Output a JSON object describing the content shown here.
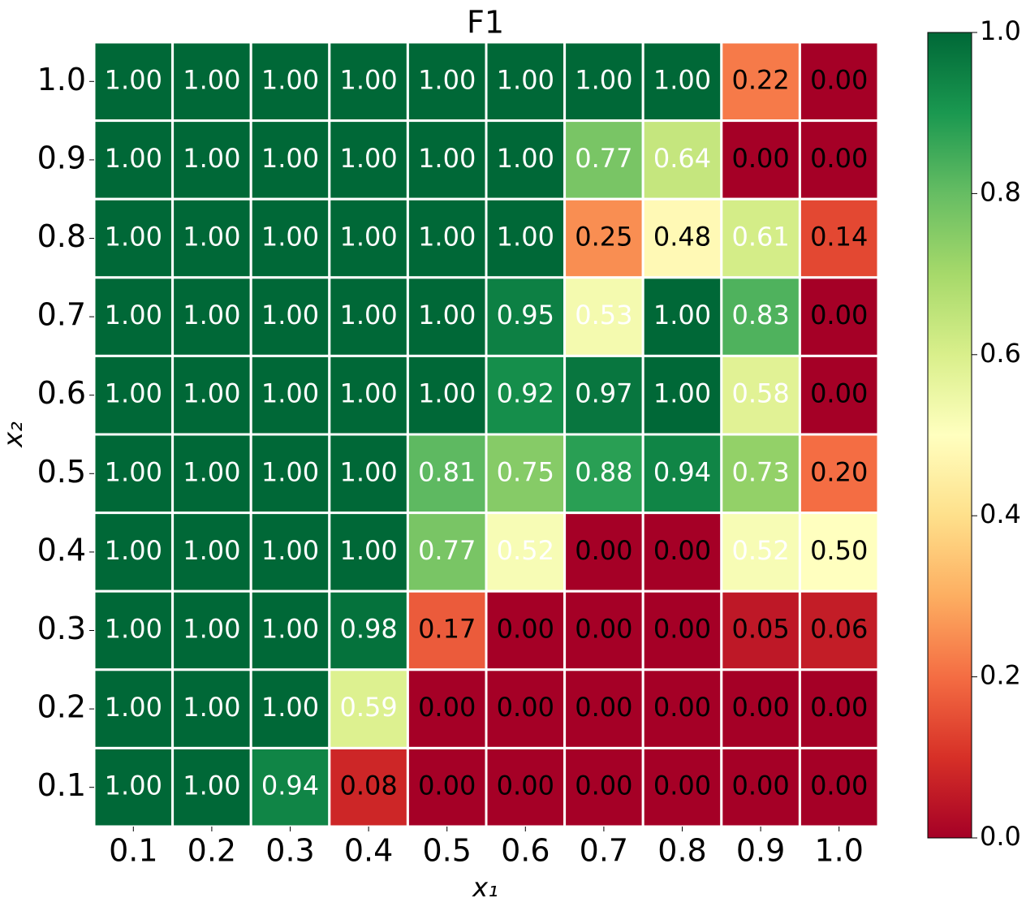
{
  "chart_data": {
    "type": "heatmap",
    "title": "F1",
    "xlabel": "x₁",
    "ylabel": "x₂",
    "x_categories": [
      "0.1",
      "0.2",
      "0.3",
      "0.4",
      "0.5",
      "0.6",
      "0.7",
      "0.8",
      "0.9",
      "1.0"
    ],
    "y_categories": [
      "1.0",
      "0.9",
      "0.8",
      "0.7",
      "0.6",
      "0.5",
      "0.4",
      "0.3",
      "0.2",
      "0.1"
    ],
    "values": [
      [
        1,
        1,
        1,
        1,
        1,
        1,
        1,
        1,
        0.22,
        0
      ],
      [
        1,
        1,
        1,
        1,
        1,
        1,
        0.77,
        0.64,
        0,
        0
      ],
      [
        1,
        1,
        1,
        1,
        1,
        1,
        0.25,
        0.48,
        0.61,
        0.14
      ],
      [
        1,
        1,
        1,
        1,
        1,
        0.95,
        0.53,
        1,
        0.83,
        0
      ],
      [
        1,
        1,
        1,
        1,
        1,
        0.92,
        0.97,
        1,
        0.58,
        0
      ],
      [
        1,
        1,
        1,
        1,
        0.81,
        0.75,
        0.88,
        0.94,
        0.73,
        0.2
      ],
      [
        1,
        1,
        1,
        1,
        0.77,
        0.52,
        0,
        0,
        0.52,
        0.5
      ],
      [
        1,
        1,
        1,
        0.98,
        0.17,
        0,
        0,
        0,
        0.05,
        0.06
      ],
      [
        1,
        1,
        1,
        0.59,
        0,
        0,
        0,
        0,
        0,
        0
      ],
      [
        1,
        1,
        0.94,
        0.08,
        0,
        0,
        0,
        0,
        0,
        0
      ]
    ],
    "value_labels": [
      [
        "1.00",
        "1.00",
        "1.00",
        "1.00",
        "1.00",
        "1.00",
        "1.00",
        "1.00",
        "0.22",
        "0.00"
      ],
      [
        "1.00",
        "1.00",
        "1.00",
        "1.00",
        "1.00",
        "1.00",
        "0.77",
        "0.64",
        "0.00",
        "0.00"
      ],
      [
        "1.00",
        "1.00",
        "1.00",
        "1.00",
        "1.00",
        "1.00",
        "0.25",
        "0.48",
        "0.61",
        "0.14"
      ],
      [
        "1.00",
        "1.00",
        "1.00",
        "1.00",
        "1.00",
        "0.95",
        "0.53",
        "1.00",
        "0.83",
        "0.00"
      ],
      [
        "1.00",
        "1.00",
        "1.00",
        "1.00",
        "1.00",
        "0.92",
        "0.97",
        "1.00",
        "0.58",
        "0.00"
      ],
      [
        "1.00",
        "1.00",
        "1.00",
        "1.00",
        "0.81",
        "0.75",
        "0.88",
        "0.94",
        "0.73",
        "0.20"
      ],
      [
        "1.00",
        "1.00",
        "1.00",
        "1.00",
        "0.77",
        "0.52",
        "0.00",
        "0.00",
        "0.52",
        "0.50"
      ],
      [
        "1.00",
        "1.00",
        "1.00",
        "0.98",
        "0.17",
        "0.00",
        "0.00",
        "0.00",
        "0.05",
        "0.06"
      ],
      [
        "1.00",
        "1.00",
        "1.00",
        "0.59",
        "0.00",
        "0.00",
        "0.00",
        "0.00",
        "0.00",
        "0.00"
      ],
      [
        "1.00",
        "1.00",
        "0.94",
        "0.08",
        "0.00",
        "0.00",
        "0.00",
        "0.00",
        "0.00",
        "0.00"
      ]
    ],
    "clim": [
      0,
      1
    ],
    "cticks": [
      {
        "value": 0,
        "label": "0.0"
      },
      {
        "value": 0.2,
        "label": "0.2"
      },
      {
        "value": 0.4,
        "label": "0.4"
      },
      {
        "value": 0.6,
        "label": "0.6"
      },
      {
        "value": 0.8,
        "label": "0.8"
      },
      {
        "value": 1,
        "label": "1.0"
      }
    ],
    "colormap": [
      "#a50026",
      "#d73027",
      "#f46d43",
      "#fdae61",
      "#fee08b",
      "#ffffbf",
      "#d9ef8b",
      "#a6d96a",
      "#66bd63",
      "#1a9850",
      "#006837"
    ]
  }
}
